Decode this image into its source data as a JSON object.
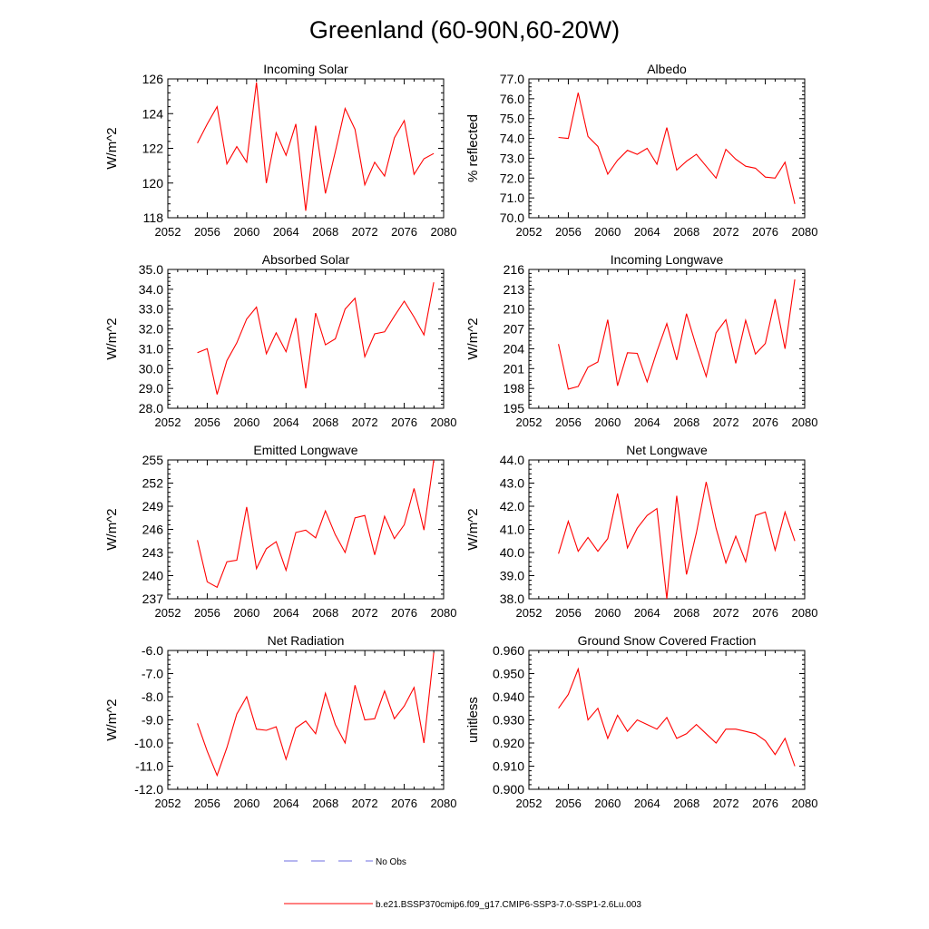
{
  "title": "Greenland (60-90N,60-20W)",
  "legend": [
    {
      "label": "No Obs",
      "color": "#6e6ee0",
      "dash": true
    },
    {
      "label": "b.e21.BSSP370cmip6.f09_g17.CMIP6-SSP3-7.0-SSP1-2.6Lu.003",
      "color": "#ff0000",
      "dash": false
    }
  ],
  "colors": {
    "line": "#ff0000",
    "axis": "#000000"
  },
  "chart_data": [
    {
      "type": "line",
      "title": "Incoming Solar",
      "ylabel": "W/m^2",
      "x": [
        2055,
        2056,
        2057,
        2058,
        2059,
        2060,
        2061,
        2062,
        2063,
        2064,
        2065,
        2066,
        2067,
        2068,
        2069,
        2070,
        2071,
        2072,
        2073,
        2074,
        2075,
        2076,
        2077,
        2078,
        2079
      ],
      "values": [
        122.3,
        123.4,
        124.4,
        121.1,
        122.1,
        121.2,
        125.8,
        120.0,
        122.9,
        121.6,
        123.4,
        118.4,
        123.3,
        119.4,
        121.8,
        124.3,
        123.1,
        119.9,
        121.2,
        120.4,
        122.6,
        123.6,
        120.5,
        121.4,
        121.7
      ],
      "xlim": [
        2052,
        2080
      ],
      "ylim": [
        118,
        126
      ],
      "xticks": [
        "2052",
        "2056",
        "2060",
        "2064",
        "2068",
        "2072",
        "2076",
        "2080"
      ],
      "yticks": [
        "118",
        "120",
        "122",
        "124",
        "126"
      ]
    },
    {
      "type": "line",
      "title": "Albedo",
      "ylabel": "% reflected",
      "x": [
        2055,
        2056,
        2057,
        2058,
        2059,
        2060,
        2061,
        2062,
        2063,
        2064,
        2065,
        2066,
        2067,
        2068,
        2069,
        2070,
        2071,
        2072,
        2073,
        2074,
        2075,
        2076,
        2077,
        2078,
        2079
      ],
      "values": [
        74.05,
        74.0,
        76.3,
        74.1,
        73.6,
        72.2,
        72.9,
        73.4,
        73.2,
        73.5,
        72.7,
        74.55,
        72.4,
        72.85,
        73.2,
        72.6,
        72.0,
        73.45,
        72.95,
        72.6,
        72.5,
        72.05,
        72.0,
        72.8,
        70.7
      ],
      "xlim": [
        2052,
        2080
      ],
      "ylim": [
        70,
        77
      ],
      "xticks": [
        "2052",
        "2056",
        "2060",
        "2064",
        "2068",
        "2072",
        "2076",
        "2080"
      ],
      "yticks": [
        "70.0",
        "71.0",
        "72.0",
        "73.0",
        "74.0",
        "75.0",
        "76.0",
        "77.0"
      ]
    },
    {
      "type": "line",
      "title": "Absorbed Solar",
      "ylabel": "W/m^2",
      "x": [
        2055,
        2056,
        2057,
        2058,
        2059,
        2060,
        2061,
        2062,
        2063,
        2064,
        2065,
        2066,
        2067,
        2068,
        2069,
        2070,
        2071,
        2072,
        2073,
        2074,
        2075,
        2076,
        2077,
        2078,
        2079
      ],
      "values": [
        30.8,
        31.0,
        28.7,
        30.4,
        31.3,
        32.5,
        33.1,
        30.75,
        31.8,
        30.85,
        32.55,
        29.0,
        32.8,
        31.2,
        31.5,
        33.0,
        33.55,
        30.6,
        31.75,
        31.85,
        32.65,
        33.4,
        32.6,
        31.7,
        34.35
      ],
      "xlim": [
        2052,
        2080
      ],
      "ylim": [
        28,
        35
      ],
      "xticks": [
        "2052",
        "2056",
        "2060",
        "2064",
        "2068",
        "2072",
        "2076",
        "2080"
      ],
      "yticks": [
        "28.0",
        "29.0",
        "30.0",
        "31.0",
        "32.0",
        "33.0",
        "34.0",
        "35.0"
      ]
    },
    {
      "type": "line",
      "title": "Incoming Longwave",
      "ylabel": "W/m^2",
      "x": [
        2055,
        2056,
        2057,
        2058,
        2059,
        2060,
        2061,
        2062,
        2063,
        2064,
        2065,
        2066,
        2067,
        2068,
        2069,
        2070,
        2071,
        2072,
        2073,
        2074,
        2075,
        2076,
        2077,
        2078,
        2079
      ],
      "values": [
        204.7,
        197.9,
        198.3,
        201.2,
        202.0,
        208.4,
        198.4,
        203.4,
        203.3,
        199.0,
        203.6,
        207.8,
        202.3,
        209.3,
        204.3,
        199.8,
        206.4,
        208.4,
        201.8,
        208.3,
        203.2,
        204.8,
        211.5,
        204.0,
        214.5
      ],
      "xlim": [
        2052,
        2080
      ],
      "ylim": [
        195,
        216
      ],
      "xticks": [
        "2052",
        "2056",
        "2060",
        "2064",
        "2068",
        "2072",
        "2076",
        "2080"
      ],
      "yticks": [
        "195",
        "198",
        "201",
        "204",
        "207",
        "210",
        "213",
        "216"
      ]
    },
    {
      "type": "line",
      "title": "Emitted Longwave",
      "ylabel": "W/m^2",
      "x": [
        2055,
        2056,
        2057,
        2058,
        2059,
        2060,
        2061,
        2062,
        2063,
        2064,
        2065,
        2066,
        2067,
        2068,
        2069,
        2070,
        2071,
        2072,
        2073,
        2074,
        2075,
        2076,
        2077,
        2078,
        2079
      ],
      "values": [
        244.6,
        239.2,
        238.5,
        241.8,
        242.0,
        248.9,
        240.9,
        243.5,
        244.4,
        240.7,
        245.6,
        245.9,
        244.9,
        248.4,
        245.3,
        243.0,
        247.5,
        247.8,
        242.7,
        247.7,
        244.8,
        246.6,
        251.3,
        245.9,
        255.0
      ],
      "xlim": [
        2052,
        2080
      ],
      "ylim": [
        237,
        255
      ],
      "xticks": [
        "2052",
        "2056",
        "2060",
        "2064",
        "2068",
        "2072",
        "2076",
        "2080"
      ],
      "yticks": [
        "237",
        "240",
        "243",
        "246",
        "249",
        "252",
        "255"
      ]
    },
    {
      "type": "line",
      "title": "Net Longwave",
      "ylabel": "W/m^2",
      "x": [
        2055,
        2056,
        2057,
        2058,
        2059,
        2060,
        2061,
        2062,
        2063,
        2064,
        2065,
        2066,
        2067,
        2068,
        2069,
        2070,
        2071,
        2072,
        2073,
        2074,
        2075,
        2076,
        2077,
        2078,
        2079
      ],
      "values": [
        39.95,
        41.35,
        40.05,
        40.65,
        40.05,
        40.6,
        42.55,
        40.2,
        41.05,
        41.6,
        41.9,
        38.0,
        42.45,
        39.05,
        40.85,
        43.05,
        41.05,
        39.55,
        40.7,
        39.6,
        41.6,
        41.75,
        40.1,
        41.75,
        40.5
      ],
      "xlim": [
        2052,
        2080
      ],
      "ylim": [
        38,
        44
      ],
      "xticks": [
        "2052",
        "2056",
        "2060",
        "2064",
        "2068",
        "2072",
        "2076",
        "2080"
      ],
      "yticks": [
        "38.0",
        "39.0",
        "40.0",
        "41.0",
        "42.0",
        "43.0",
        "44.0"
      ]
    },
    {
      "type": "line",
      "title": "Net Radiation",
      "ylabel": "W/m^2",
      "x": [
        2055,
        2056,
        2057,
        2058,
        2059,
        2060,
        2061,
        2062,
        2063,
        2064,
        2065,
        2066,
        2067,
        2068,
        2069,
        2070,
        2071,
        2072,
        2073,
        2074,
        2075,
        2076,
        2077,
        2078,
        2079
      ],
      "values": [
        -9.15,
        -10.35,
        -11.4,
        -10.2,
        -8.75,
        -8.0,
        -9.4,
        -9.45,
        -9.3,
        -10.7,
        -9.35,
        -9.05,
        -9.6,
        -7.85,
        -9.2,
        -10.0,
        -7.5,
        -9.0,
        -8.95,
        -7.75,
        -8.95,
        -8.4,
        -7.6,
        -10.0,
        -6.1
      ],
      "xlim": [
        2052,
        2080
      ],
      "ylim": [
        -12,
        -6
      ],
      "xticks": [
        "2052",
        "2056",
        "2060",
        "2064",
        "2068",
        "2072",
        "2076",
        "2080"
      ],
      "yticks": [
        "-12.0",
        "-11.0",
        "-10.0",
        "-9.0",
        "-8.0",
        "-7.0",
        "-6.0"
      ]
    },
    {
      "type": "line",
      "title": "Ground Snow Covered Fraction",
      "ylabel": "unitless",
      "x": [
        2055,
        2056,
        2057,
        2058,
        2059,
        2060,
        2061,
        2062,
        2063,
        2064,
        2065,
        2066,
        2067,
        2068,
        2069,
        2070,
        2071,
        2072,
        2073,
        2074,
        2075,
        2076,
        2077,
        2078,
        2079
      ],
      "values": [
        0.935,
        0.941,
        0.952,
        0.93,
        0.935,
        0.922,
        0.932,
        0.925,
        0.93,
        0.928,
        0.926,
        0.931,
        0.922,
        0.924,
        0.928,
        0.924,
        0.92,
        0.926,
        0.926,
        0.925,
        0.924,
        0.921,
        0.915,
        0.922,
        0.91
      ],
      "xlim": [
        2052,
        2080
      ],
      "ylim": [
        0.9,
        0.96
      ],
      "xticks": [
        "2052",
        "2056",
        "2060",
        "2064",
        "2068",
        "2072",
        "2076",
        "2080"
      ],
      "yticks": [
        "0.900",
        "0.910",
        "0.920",
        "0.930",
        "0.940",
        "0.950",
        "0.960"
      ]
    }
  ]
}
